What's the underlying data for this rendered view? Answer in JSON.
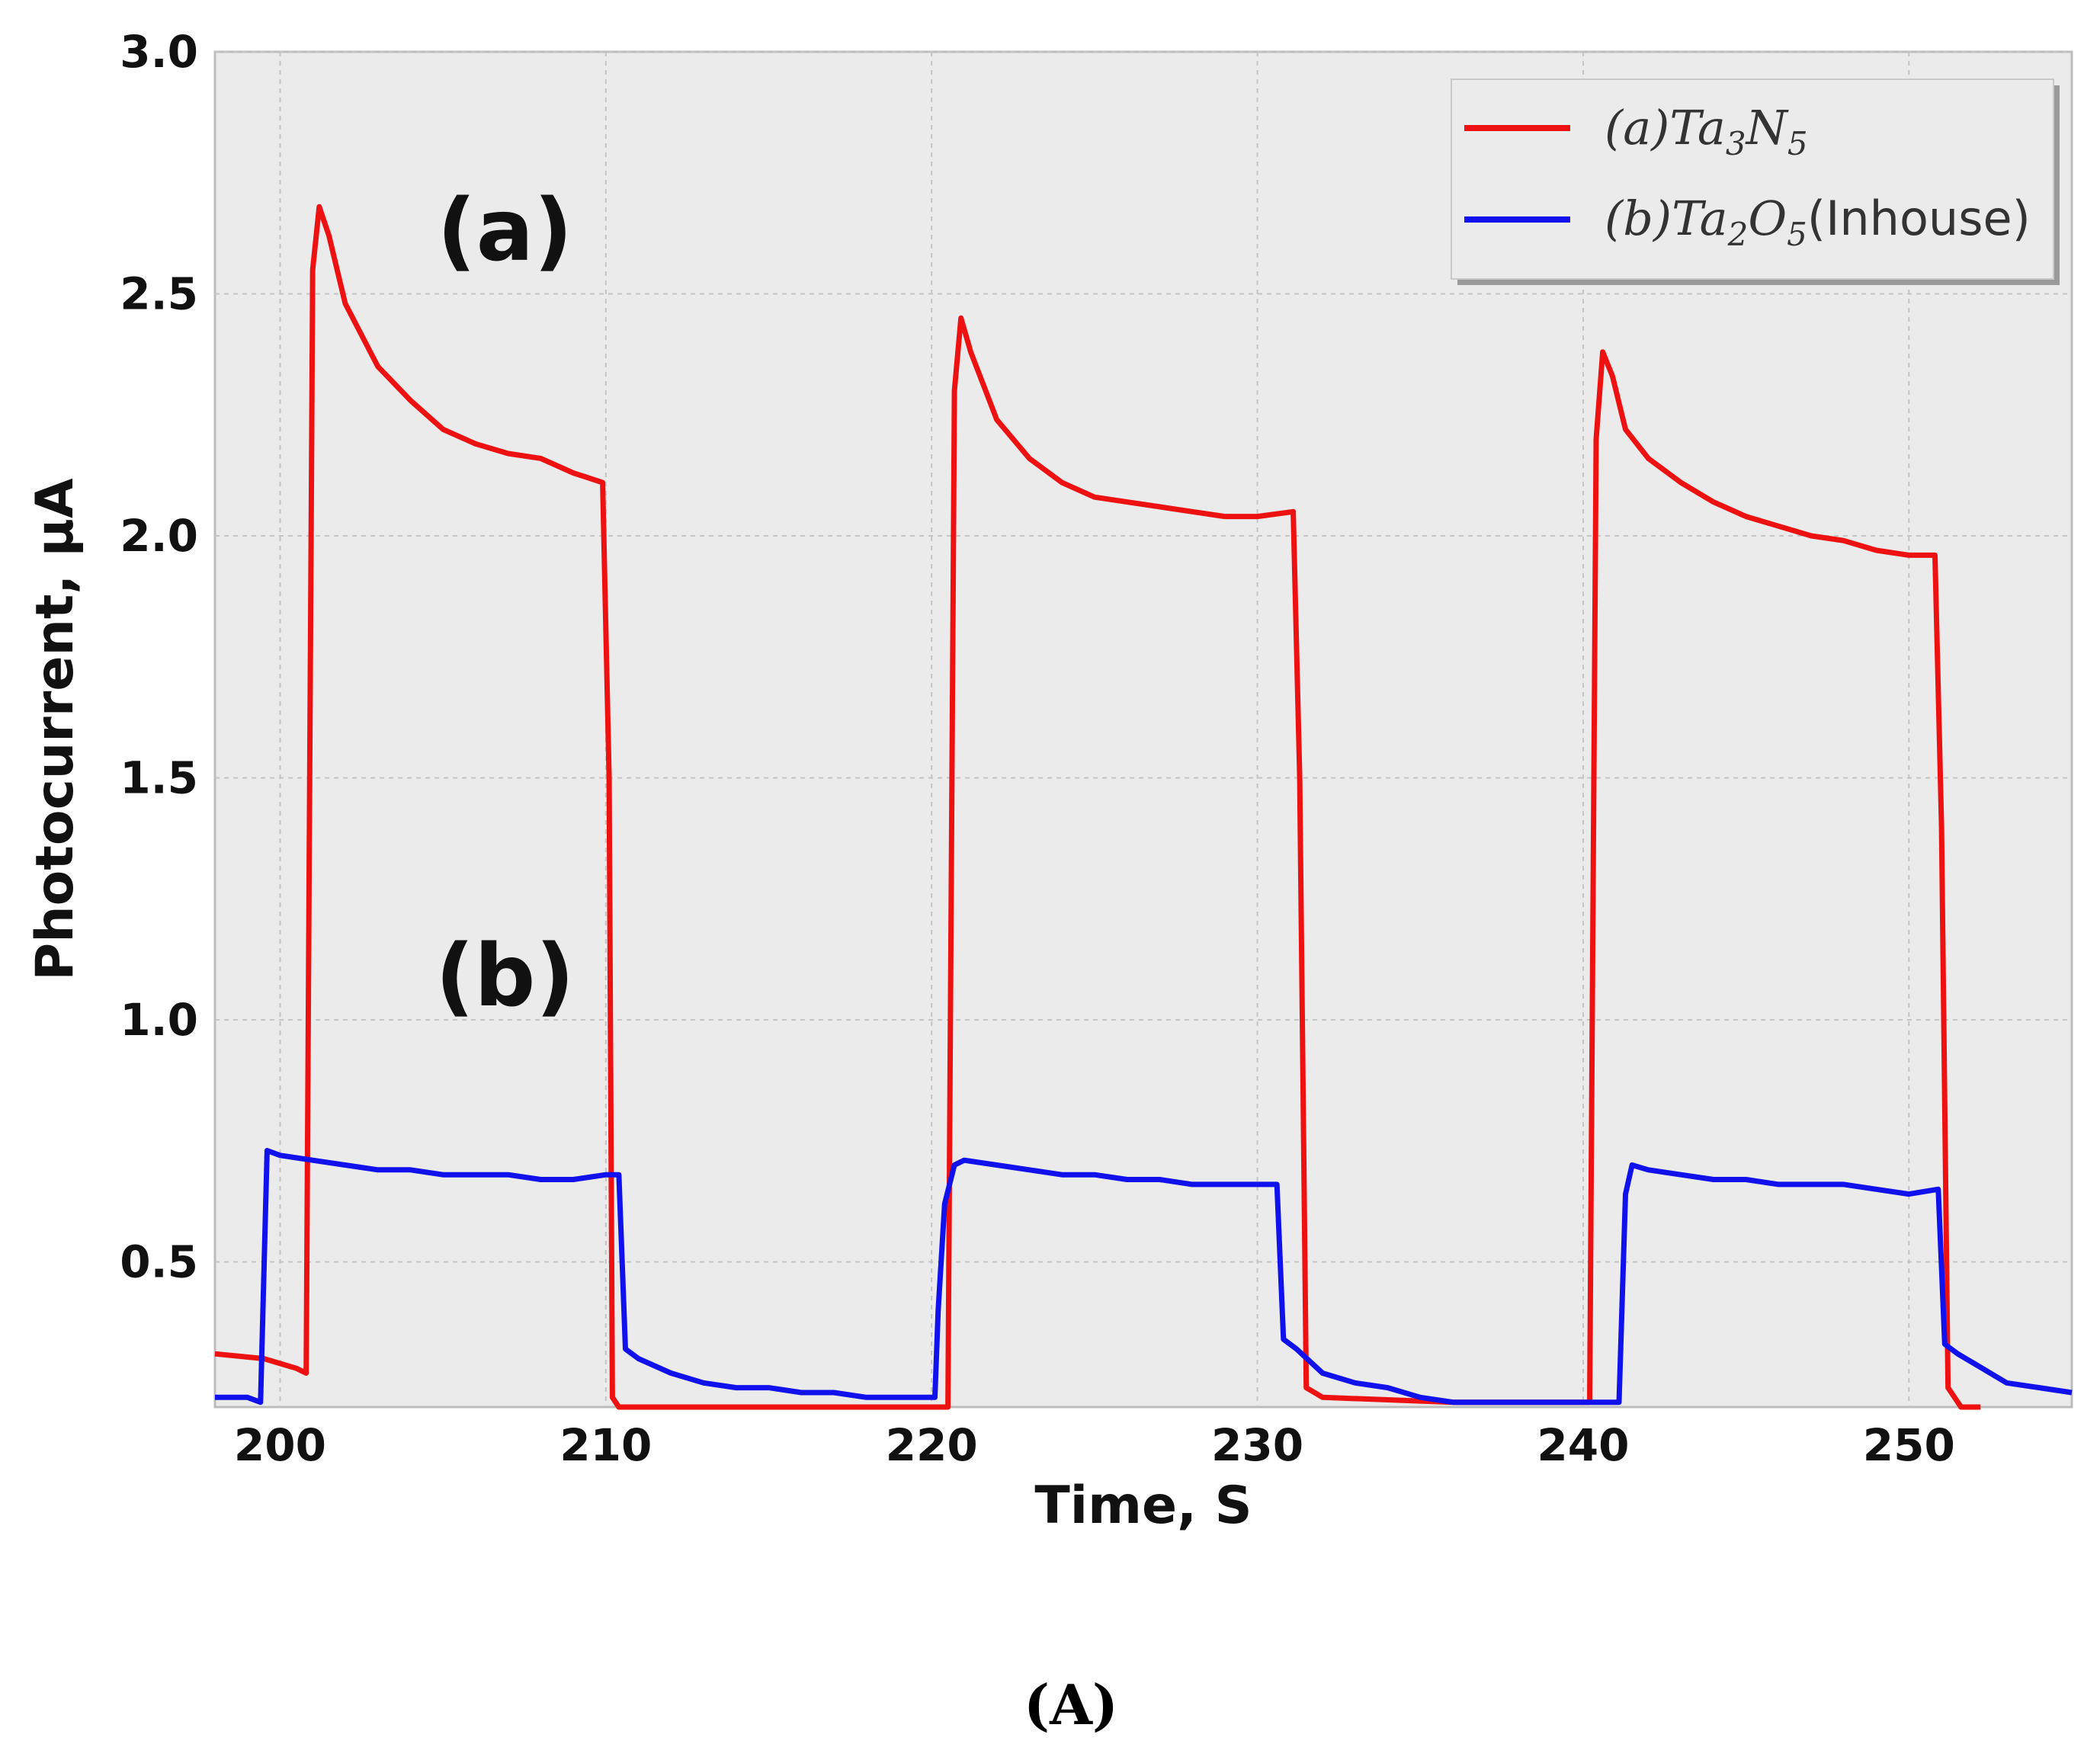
{
  "chart_data": {
    "type": "line",
    "title": "",
    "xlabel": "Time, S",
    "ylabel": "Photocurrent, μA",
    "xlim": [
      198,
      255
    ],
    "ylim": [
      0.2,
      3.0
    ],
    "x_ticks": [
      200,
      210,
      220,
      230,
      240,
      250
    ],
    "y_ticks": [
      0.5,
      1.0,
      1.5,
      2.0,
      2.5,
      3.0
    ],
    "x_tick_labels": [
      "200",
      "210",
      "220",
      "230",
      "240",
      "250"
    ],
    "y_tick_labels": [
      "0.5",
      "1.0",
      "1.5",
      "2.0",
      "2.5",
      "3.0"
    ],
    "grid": true,
    "legend_position": "top-right",
    "series": [
      {
        "name": "(a)Ta3N5",
        "legend_prefix": "(a)",
        "legend_main": "Ta",
        "legend_sub1": "3",
        "legend_mid": "N",
        "legend_sub2": "5",
        "legend_suffix": "",
        "color": "#ee1111",
        "points": [
          [
            198,
            0.31
          ],
          [
            199.5,
            0.3
          ],
          [
            200.5,
            0.28
          ],
          [
            200.8,
            0.27
          ],
          [
            201.0,
            2.55
          ],
          [
            201.2,
            2.68
          ],
          [
            201.5,
            2.62
          ],
          [
            202,
            2.48
          ],
          [
            203,
            2.35
          ],
          [
            204,
            2.28
          ],
          [
            205,
            2.22
          ],
          [
            206,
            2.19
          ],
          [
            207,
            2.17
          ],
          [
            208,
            2.16
          ],
          [
            209,
            2.13
          ],
          [
            209.9,
            2.11
          ],
          [
            210.1,
            1.5
          ],
          [
            210.2,
            0.22
          ],
          [
            210.4,
            0.2
          ],
          [
            220.5,
            0.2
          ],
          [
            220.7,
            2.3
          ],
          [
            220.9,
            2.45
          ],
          [
            221.2,
            2.38
          ],
          [
            222,
            2.24
          ],
          [
            223,
            2.16
          ],
          [
            224,
            2.11
          ],
          [
            225,
            2.08
          ],
          [
            226,
            2.07
          ],
          [
            227,
            2.06
          ],
          [
            228,
            2.05
          ],
          [
            229,
            2.04
          ],
          [
            230,
            2.04
          ],
          [
            231.1,
            2.05
          ],
          [
            231.3,
            1.5
          ],
          [
            231.5,
            0.24
          ],
          [
            232,
            0.22
          ],
          [
            236,
            0.21
          ],
          [
            240.2,
            0.21
          ],
          [
            240.4,
            2.2
          ],
          [
            240.6,
            2.38
          ],
          [
            240.9,
            2.33
          ],
          [
            241.3,
            2.22
          ],
          [
            242,
            2.16
          ],
          [
            243,
            2.11
          ],
          [
            244,
            2.07
          ],
          [
            245,
            2.04
          ],
          [
            246,
            2.02
          ],
          [
            247,
            2.0
          ],
          [
            248,
            1.99
          ],
          [
            249,
            1.97
          ],
          [
            250,
            1.96
          ],
          [
            250.8,
            1.96
          ],
          [
            251.0,
            1.4
          ],
          [
            251.2,
            0.24
          ],
          [
            251.6,
            0.2
          ],
          [
            252.2,
            0.2
          ]
        ]
      },
      {
        "name": "(b)Ta2O5(Inhouse)",
        "legend_prefix": "(b)",
        "legend_main": "Ta",
        "legend_sub1": "2",
        "legend_mid": "O",
        "legend_sub2": "5",
        "legend_suffix": "(Inhouse)",
        "color": "#1111ee",
        "points": [
          [
            198,
            0.22
          ],
          [
            199.0,
            0.22
          ],
          [
            199.4,
            0.21
          ],
          [
            199.6,
            0.73
          ],
          [
            200,
            0.72
          ],
          [
            201,
            0.71
          ],
          [
            202,
            0.7
          ],
          [
            203,
            0.69
          ],
          [
            204,
            0.69
          ],
          [
            205,
            0.68
          ],
          [
            206,
            0.68
          ],
          [
            207,
            0.68
          ],
          [
            208,
            0.67
          ],
          [
            209,
            0.67
          ],
          [
            210,
            0.68
          ],
          [
            210.4,
            0.68
          ],
          [
            210.6,
            0.32
          ],
          [
            211,
            0.3
          ],
          [
            212,
            0.27
          ],
          [
            213,
            0.25
          ],
          [
            214,
            0.24
          ],
          [
            215,
            0.24
          ],
          [
            216,
            0.23
          ],
          [
            217,
            0.23
          ],
          [
            218,
            0.22
          ],
          [
            219,
            0.22
          ],
          [
            220.1,
            0.22
          ],
          [
            220.2,
            0.4
          ],
          [
            220.4,
            0.62
          ],
          [
            220.7,
            0.7
          ],
          [
            221,
            0.71
          ],
          [
            222,
            0.7
          ],
          [
            223,
            0.69
          ],
          [
            224,
            0.68
          ],
          [
            225,
            0.68
          ],
          [
            226,
            0.67
          ],
          [
            227,
            0.67
          ],
          [
            228,
            0.66
          ],
          [
            229,
            0.66
          ],
          [
            230,
            0.66
          ],
          [
            230.6,
            0.66
          ],
          [
            230.8,
            0.34
          ],
          [
            231.2,
            0.32
          ],
          [
            232,
            0.27
          ],
          [
            233,
            0.25
          ],
          [
            234,
            0.24
          ],
          [
            235,
            0.22
          ],
          [
            236,
            0.21
          ],
          [
            238,
            0.21
          ],
          [
            240,
            0.21
          ],
          [
            241.1,
            0.21
          ],
          [
            241.3,
            0.64
          ],
          [
            241.5,
            0.7
          ],
          [
            242,
            0.69
          ],
          [
            243,
            0.68
          ],
          [
            244,
            0.67
          ],
          [
            245,
            0.67
          ],
          [
            246,
            0.66
          ],
          [
            247,
            0.66
          ],
          [
            248,
            0.66
          ],
          [
            249,
            0.65
          ],
          [
            250,
            0.64
          ],
          [
            250.9,
            0.65
          ],
          [
            251.1,
            0.33
          ],
          [
            251.5,
            0.31
          ],
          [
            252,
            0.29
          ],
          [
            253,
            0.25
          ],
          [
            254,
            0.24
          ],
          [
            255,
            0.23
          ]
        ]
      }
    ],
    "annotations": [
      {
        "text": "(a)",
        "x": 206.9,
        "y": 2.57
      },
      {
        "text": "(b)",
        "x": 206.9,
        "y": 1.03
      }
    ]
  },
  "figure_label": "(A)"
}
